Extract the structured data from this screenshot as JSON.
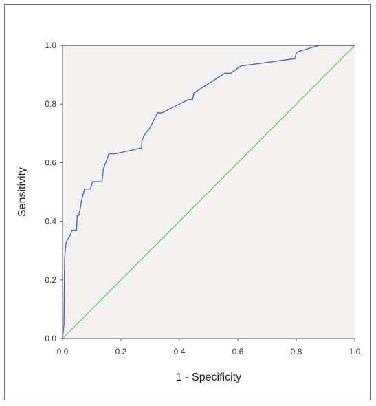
{
  "chart_data": {
    "type": "line",
    "title": "",
    "xlabel": "1 - Specificity",
    "ylabel": "Sensitivity",
    "xlim": [
      0,
      1
    ],
    "ylim": [
      0,
      1
    ],
    "xticks": [
      "0.0",
      "0.2",
      "0.4",
      "0.6",
      "0.8",
      "1.0"
    ],
    "yticks": [
      "0.0",
      "0.2",
      "0.4",
      "0.6",
      "0.8",
      "1.0"
    ],
    "grid": false,
    "legend": "none",
    "series": [
      {
        "role": "roc-curve",
        "color": "#4a66b8",
        "points": [
          [
            0.0,
            0.0
          ],
          [
            0.005,
            0.05
          ],
          [
            0.007,
            0.27
          ],
          [
            0.01,
            0.31
          ],
          [
            0.013,
            0.33
          ],
          [
            0.025,
            0.35
          ],
          [
            0.033,
            0.37
          ],
          [
            0.048,
            0.37
          ],
          [
            0.05,
            0.42
          ],
          [
            0.055,
            0.42
          ],
          [
            0.06,
            0.44
          ],
          [
            0.065,
            0.47
          ],
          [
            0.075,
            0.51
          ],
          [
            0.095,
            0.51
          ],
          [
            0.103,
            0.535
          ],
          [
            0.135,
            0.535
          ],
          [
            0.14,
            0.58
          ],
          [
            0.152,
            0.61
          ],
          [
            0.158,
            0.63
          ],
          [
            0.18,
            0.63
          ],
          [
            0.27,
            0.65
          ],
          [
            0.272,
            0.675
          ],
          [
            0.28,
            0.695
          ],
          [
            0.285,
            0.7
          ],
          [
            0.3,
            0.72
          ],
          [
            0.325,
            0.77
          ],
          [
            0.34,
            0.77
          ],
          [
            0.43,
            0.815
          ],
          [
            0.445,
            0.815
          ],
          [
            0.45,
            0.838
          ],
          [
            0.555,
            0.905
          ],
          [
            0.575,
            0.905
          ],
          [
            0.61,
            0.93
          ],
          [
            0.795,
            0.955
          ],
          [
            0.8,
            0.975
          ],
          [
            0.81,
            0.98
          ],
          [
            0.88,
            1.0
          ],
          [
            1.0,
            1.0
          ]
        ]
      },
      {
        "role": "reference-line",
        "color": "#5cc45c",
        "points": [
          [
            0,
            0
          ],
          [
            1,
            1
          ]
        ]
      }
    ],
    "plot_background": "#f3f2f0",
    "axis_color": "#555555",
    "top_border_color": "#6e6e6e"
  }
}
